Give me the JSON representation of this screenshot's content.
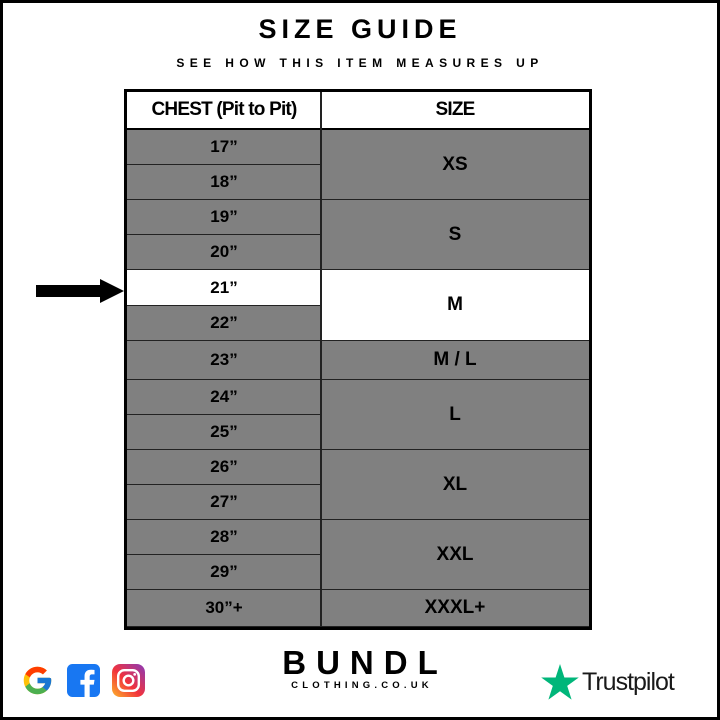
{
  "title": "SIZE GUIDE",
  "subtitle": "SEE HOW THIS ITEM MEASURES UP",
  "table": {
    "headers": [
      "CHEST (Pit to Pit)",
      "SIZE"
    ],
    "chest": [
      "17”",
      "18”",
      "19”",
      "20”",
      "21”",
      "22”",
      "23”",
      "24”",
      "25”",
      "26”",
      "27”",
      "28”",
      "29”",
      "30”+"
    ],
    "sizes": [
      {
        "label": "XS",
        "rows": 2
      },
      {
        "label": "S",
        "rows": 2
      },
      {
        "label": "M",
        "rows": 2
      },
      {
        "label": "M / L",
        "rows": 1
      },
      {
        "label": "L",
        "rows": 2
      },
      {
        "label": "XL",
        "rows": 2
      },
      {
        "label": "XXL",
        "rows": 2
      },
      {
        "label": "XXXL+",
        "rows": 1
      }
    ],
    "highlighted_chest": "21”",
    "highlighted_size": "M",
    "cell_color": "#808080",
    "highlight_color": "#ffffff"
  },
  "footer": {
    "brand": "BUNDL",
    "domain": "CLOTHING.CO.UK",
    "trustpilot": "Trustpilot",
    "social_icons": [
      "google-icon",
      "facebook-icon",
      "instagram-icon"
    ],
    "trustpilot_color": "#00b67a"
  }
}
